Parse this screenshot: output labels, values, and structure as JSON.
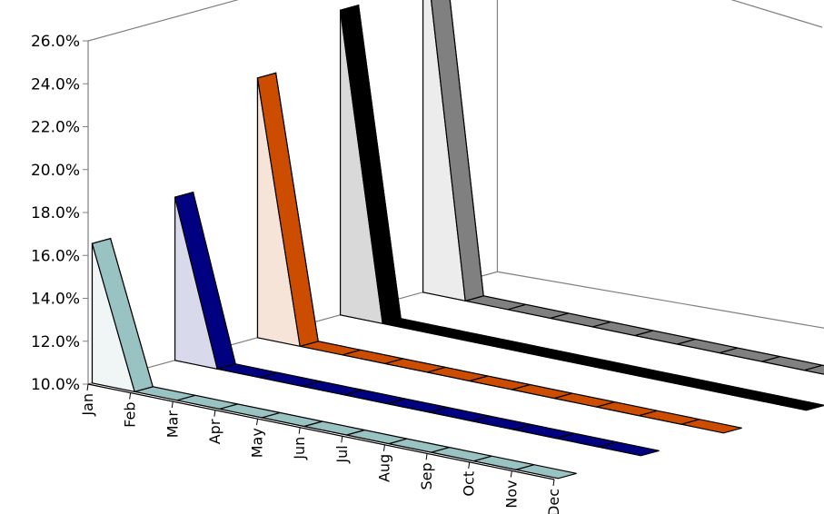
{
  "chart_data": {
    "type": "area",
    "title": "",
    "xlabel": "",
    "ylabel": "",
    "ylim": [
      10,
      26
    ],
    "y_unit": "%",
    "y_ticks": [
      "10.0%",
      "12.0%",
      "14.0%",
      "16.0%",
      "18.0%",
      "20.0%",
      "22.0%",
      "24.0%",
      "26.0%"
    ],
    "categories": [
      "Jan",
      "Feb",
      "Mar",
      "Apr",
      "May",
      "Jun",
      "Jul",
      "Aug",
      "Sep",
      "Oct",
      "Nov",
      "Dec"
    ],
    "grid": false,
    "legend": "none",
    "series": [
      {
        "color": "#99c2c2",
        "values": [
          16.5,
          10,
          10,
          10,
          10,
          10,
          10,
          10,
          10,
          10,
          10,
          10
        ]
      },
      {
        "color": "#000080",
        "values": [
          17.6,
          10,
          10,
          10,
          10,
          10,
          10,
          10,
          10,
          10,
          10,
          10
        ]
      },
      {
        "color": "#cc4d00",
        "values": [
          22.1,
          10,
          10,
          10,
          10,
          10,
          10,
          10,
          10,
          10,
          10,
          10
        ]
      },
      {
        "color": "#000000",
        "values": [
          24.2,
          10,
          10,
          10,
          10,
          10,
          10,
          10,
          10,
          10,
          10,
          10
        ]
      },
      {
        "color": "#808080",
        "values": [
          27.0,
          10,
          10,
          10,
          10,
          10,
          10,
          10,
          10,
          10,
          10,
          10
        ]
      }
    ]
  }
}
